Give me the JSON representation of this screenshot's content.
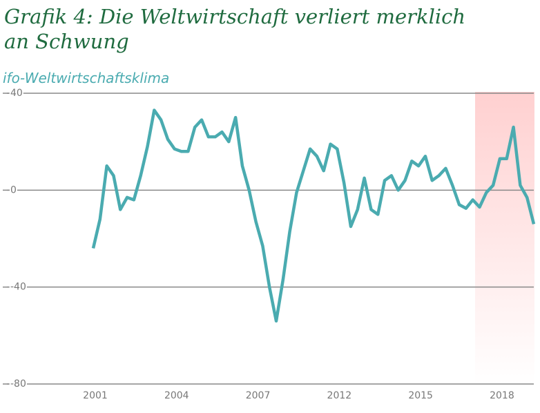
{
  "chart_data": {
    "type": "line",
    "title": "Grafik 4: Die Weltwirtschaft verliert merklich an Schwung",
    "subtitle": "ifo-Weltwirtschaftsklima",
    "categories": [
      "2001",
      null,
      null,
      null,
      null,
      null,
      null,
      null,
      null,
      null,
      null,
      null,
      "2004",
      null,
      null,
      null,
      null,
      null,
      null,
      null,
      null,
      null,
      null,
      null,
      "2007",
      null,
      null,
      null,
      null,
      null,
      null,
      null,
      null,
      null,
      null,
      null,
      "2012",
      null,
      null,
      null,
      null,
      null,
      null,
      null,
      null,
      null,
      null,
      null,
      "2015",
      null,
      null,
      null,
      null,
      null,
      null,
      null,
      null,
      null,
      null,
      null,
      "2018",
      null,
      null,
      null,
      null,
      null
    ],
    "series": [
      {
        "name": "ifo-Weltwirtschaftsklima",
        "color": "#4aabb0",
        "values": [
          -24,
          -12,
          10,
          6,
          -8,
          -3,
          -4,
          6,
          18,
          33,
          29,
          21,
          17,
          16,
          16,
          26,
          29,
          22,
          22,
          24,
          20,
          30,
          10,
          0,
          -13,
          -23,
          -40,
          -54,
          -37,
          -17,
          -1,
          8,
          17,
          14,
          8,
          19,
          17,
          3,
          -15,
          -8,
          5,
          -8,
          -10,
          4,
          6,
          0,
          4,
          12,
          10,
          14,
          4,
          6,
          9,
          2,
          -6,
          -7.5,
          -4,
          -7,
          -1,
          2,
          13,
          13,
          26,
          2,
          -3,
          -14
        ]
      }
    ],
    "ylim": [
      -80,
      40
    ],
    "yticks": [
      40,
      0,
      -40,
      -80
    ],
    "grid": true
  }
}
